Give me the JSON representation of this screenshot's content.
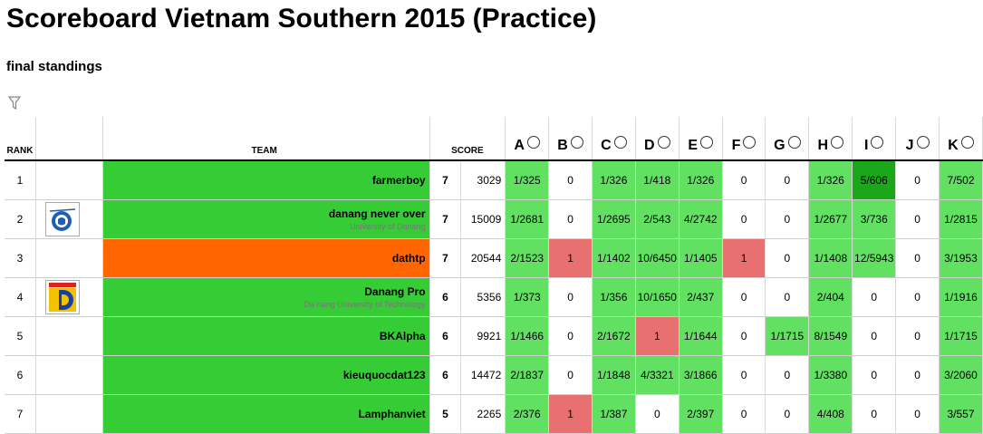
{
  "header": {
    "title": "Scoreboard Vietnam Southern 2015 (Practice)",
    "subtitle": "final standings"
  },
  "columns": {
    "rank": "RANK",
    "team": "TEAM",
    "score": "SCORE",
    "problems": [
      "A",
      "B",
      "C",
      "D",
      "E",
      "F",
      "G",
      "H",
      "I",
      "J",
      "K"
    ]
  },
  "colors": {
    "solved": "#62e062",
    "first_to_solve": "#1aa81a",
    "failed": "#e87070",
    "team_green": "#36cc36",
    "team_orange": "#ff6600"
  },
  "rows": [
    {
      "rank": "1",
      "name": "farmerboy",
      "affiliation": "",
      "logo": "",
      "team_color": "green",
      "solved": "7",
      "time": "3029",
      "cells": [
        {
          "text": "1/325",
          "status": "solved"
        },
        {
          "text": "0",
          "status": "pending"
        },
        {
          "text": "1/326",
          "status": "solved"
        },
        {
          "text": "1/418",
          "status": "solved"
        },
        {
          "text": "1/326",
          "status": "solved"
        },
        {
          "text": "0",
          "status": "pending"
        },
        {
          "text": "0",
          "status": "pending"
        },
        {
          "text": "1/326",
          "status": "solved"
        },
        {
          "text": "5/606",
          "status": "first"
        },
        {
          "text": "0",
          "status": "pending"
        },
        {
          "text": "7/502",
          "status": "solved"
        }
      ]
    },
    {
      "rank": "2",
      "name": "danang never over",
      "affiliation": "University of Danang",
      "logo": "ud-logo",
      "team_color": "green",
      "solved": "7",
      "time": "15009",
      "cells": [
        {
          "text": "1/2681",
          "status": "solved"
        },
        {
          "text": "0",
          "status": "pending"
        },
        {
          "text": "1/2695",
          "status": "solved"
        },
        {
          "text": "2/543",
          "status": "solved"
        },
        {
          "text": "4/2742",
          "status": "solved"
        },
        {
          "text": "0",
          "status": "pending"
        },
        {
          "text": "0",
          "status": "pending"
        },
        {
          "text": "1/2677",
          "status": "solved"
        },
        {
          "text": "3/736",
          "status": "solved"
        },
        {
          "text": "0",
          "status": "pending"
        },
        {
          "text": "1/2815",
          "status": "solved"
        }
      ]
    },
    {
      "rank": "3",
      "name": "dathtp",
      "affiliation": "",
      "logo": "",
      "team_color": "orange",
      "solved": "7",
      "time": "20544",
      "cells": [
        {
          "text": "2/1523",
          "status": "solved"
        },
        {
          "text": "1",
          "status": "failed"
        },
        {
          "text": "1/1402",
          "status": "solved"
        },
        {
          "text": "10/6450",
          "status": "solved"
        },
        {
          "text": "1/1405",
          "status": "solved"
        },
        {
          "text": "1",
          "status": "failed"
        },
        {
          "text": "0",
          "status": "pending"
        },
        {
          "text": "1/1408",
          "status": "solved"
        },
        {
          "text": "12/5943",
          "status": "solved"
        },
        {
          "text": "0",
          "status": "pending"
        },
        {
          "text": "3/1953",
          "status": "solved"
        }
      ]
    },
    {
      "rank": "4",
      "name": "Danang Pro",
      "affiliation": "Da nang University of Technology",
      "logo": "dut-logo",
      "team_color": "green",
      "solved": "6",
      "time": "5356",
      "cells": [
        {
          "text": "1/373",
          "status": "solved"
        },
        {
          "text": "0",
          "status": "pending"
        },
        {
          "text": "1/356",
          "status": "solved"
        },
        {
          "text": "10/1650",
          "status": "solved"
        },
        {
          "text": "2/437",
          "status": "solved"
        },
        {
          "text": "0",
          "status": "pending"
        },
        {
          "text": "0",
          "status": "pending"
        },
        {
          "text": "2/404",
          "status": "solved"
        },
        {
          "text": "0",
          "status": "pending"
        },
        {
          "text": "0",
          "status": "pending"
        },
        {
          "text": "1/1916",
          "status": "solved"
        }
      ]
    },
    {
      "rank": "5",
      "name": "BKAlpha",
      "affiliation": "",
      "logo": "",
      "team_color": "green",
      "solved": "6",
      "time": "9921",
      "cells": [
        {
          "text": "1/1466",
          "status": "solved"
        },
        {
          "text": "0",
          "status": "pending"
        },
        {
          "text": "2/1672",
          "status": "solved"
        },
        {
          "text": "1",
          "status": "failed"
        },
        {
          "text": "1/1644",
          "status": "solved"
        },
        {
          "text": "0",
          "status": "pending"
        },
        {
          "text": "1/1715",
          "status": "solved"
        },
        {
          "text": "8/1549",
          "status": "solved"
        },
        {
          "text": "0",
          "status": "pending"
        },
        {
          "text": "0",
          "status": "pending"
        },
        {
          "text": "1/1715",
          "status": "solved"
        }
      ]
    },
    {
      "rank": "6",
      "name": "kieuquocdat123",
      "affiliation": "",
      "logo": "",
      "team_color": "green",
      "solved": "6",
      "time": "14472",
      "cells": [
        {
          "text": "2/1837",
          "status": "solved"
        },
        {
          "text": "0",
          "status": "pending"
        },
        {
          "text": "1/1848",
          "status": "solved"
        },
        {
          "text": "4/3321",
          "status": "solved"
        },
        {
          "text": "3/1866",
          "status": "solved"
        },
        {
          "text": "0",
          "status": "pending"
        },
        {
          "text": "0",
          "status": "pending"
        },
        {
          "text": "1/3380",
          "status": "solved"
        },
        {
          "text": "0",
          "status": "pending"
        },
        {
          "text": "0",
          "status": "pending"
        },
        {
          "text": "3/2060",
          "status": "solved"
        }
      ]
    },
    {
      "rank": "7",
      "name": "Lamphanviet",
      "affiliation": "",
      "logo": "",
      "team_color": "green",
      "solved": "5",
      "time": "2265",
      "cells": [
        {
          "text": "2/376",
          "status": "solved"
        },
        {
          "text": "1",
          "status": "failed"
        },
        {
          "text": "1/387",
          "status": "solved"
        },
        {
          "text": "0",
          "status": "pending"
        },
        {
          "text": "2/397",
          "status": "solved"
        },
        {
          "text": "0",
          "status": "pending"
        },
        {
          "text": "0",
          "status": "pending"
        },
        {
          "text": "4/408",
          "status": "solved"
        },
        {
          "text": "0",
          "status": "pending"
        },
        {
          "text": "0",
          "status": "pending"
        },
        {
          "text": "3/557",
          "status": "solved"
        }
      ]
    }
  ]
}
